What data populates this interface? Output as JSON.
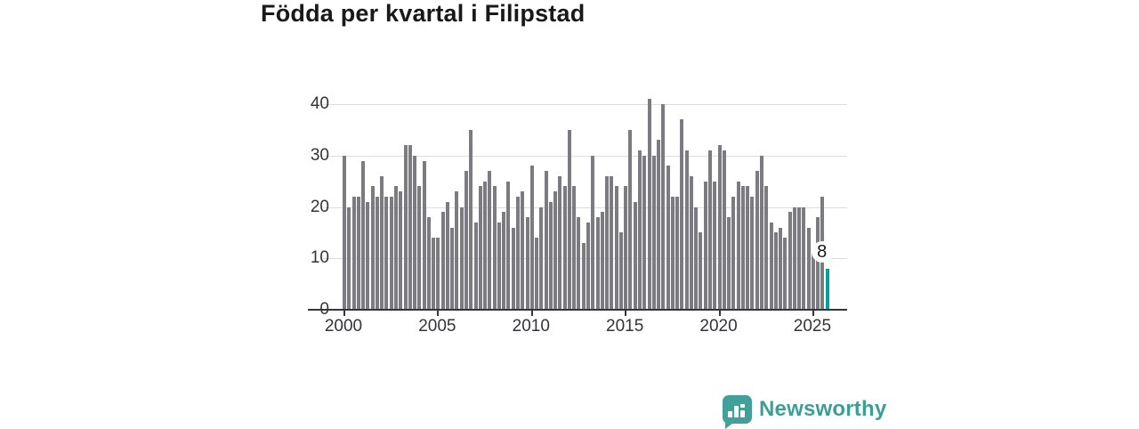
{
  "chart": {
    "title": "Födda per kvartal i Filipstad"
  },
  "chart_data": {
    "type": "bar",
    "title": "Födda per kvartal i Filipstad",
    "frequency": "quarterly",
    "x_start": "2000 Q1",
    "x_end": "2025 Q4",
    "values": [
      30,
      20,
      22,
      22,
      29,
      21,
      24,
      22,
      26,
      22,
      22,
      24,
      23,
      32,
      32,
      30,
      24,
      29,
      18,
      14,
      14,
      19,
      21,
      16,
      23,
      20,
      27,
      35,
      17,
      24,
      25,
      27,
      24,
      17,
      19,
      25,
      16,
      22,
      23,
      18,
      28,
      14,
      20,
      27,
      21,
      23,
      26,
      24,
      35,
      24,
      18,
      13,
      17,
      30,
      18,
      19,
      26,
      26,
      24,
      15,
      24,
      35,
      21,
      31,
      30,
      41,
      30,
      33,
      40,
      28,
      22,
      22,
      37,
      31,
      26,
      20,
      15,
      25,
      31,
      25,
      32,
      31,
      18,
      22,
      25,
      24,
      24,
      22,
      27,
      30,
      24,
      17,
      15,
      16,
      14,
      19,
      20,
      20,
      20,
      16,
      11,
      18,
      22,
      8
    ],
    "xticks": [
      "2000",
      "2005",
      "2010",
      "2015",
      "2020",
      "2025"
    ],
    "yticks": [
      0,
      10,
      20,
      30,
      40
    ],
    "ylim": [
      0,
      43.8
    ],
    "grid": "horizontal",
    "legend": "none",
    "bar_color": "#7b7b81",
    "highlight_color": "#00a39b",
    "highlight_index": 103,
    "highlight_label": "8"
  },
  "logo": {
    "text": "Newsworthy"
  }
}
